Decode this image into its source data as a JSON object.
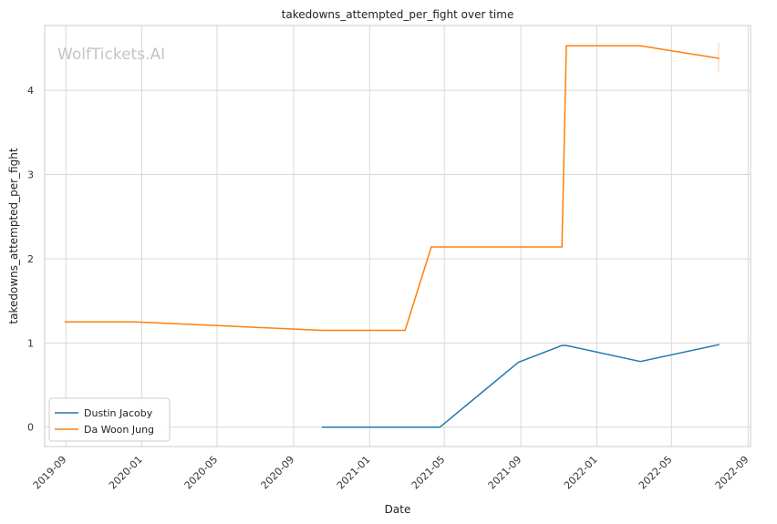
{
  "chart_data": {
    "type": "line",
    "title": "takedowns_attempted_per_fight over time",
    "xlabel": "Date",
    "ylabel": "takedowns_attempted_per_fight",
    "watermark": "WolfTickets.AI",
    "xlim": [
      "2019-07-29",
      "2022-09-05"
    ],
    "ylim": [
      -0.23,
      4.77
    ],
    "x_ticks": [
      "2019-09",
      "2020-01",
      "2020-05",
      "2020-09",
      "2021-01",
      "2021-05",
      "2021-09",
      "2022-01",
      "2022-05",
      "2022-09"
    ],
    "y_ticks": [
      0,
      1,
      2,
      3,
      4
    ],
    "grid": true,
    "legend_position": "lower-left",
    "series": [
      {
        "name": "Dustin Jacoby",
        "color": "#1f77b4",
        "points": [
          {
            "x": "2020-10-17",
            "y": 0.0
          },
          {
            "x": "2021-04-24",
            "y": 0.0
          },
          {
            "x": "2021-08-28",
            "y": 0.77
          },
          {
            "x": "2021-11-06",
            "y": 0.97
          },
          {
            "x": "2021-11-13",
            "y": 0.97
          },
          {
            "x": "2022-03-12",
            "y": 0.78
          },
          {
            "x": "2022-07-16",
            "y": 0.98
          }
        ]
      },
      {
        "name": "Da Woon Jung",
        "color": "#ff7f0e",
        "points": [
          {
            "x": "2019-08-31",
            "y": 1.25
          },
          {
            "x": "2019-12-21",
            "y": 1.25
          },
          {
            "x": "2020-10-17",
            "y": 1.15
          },
          {
            "x": "2021-02-27",
            "y": 1.15
          },
          {
            "x": "2021-04-10",
            "y": 2.14
          },
          {
            "x": "2021-11-06",
            "y": 2.14
          },
          {
            "x": "2021-11-13",
            "y": 4.53
          },
          {
            "x": "2022-03-12",
            "y": 4.53
          },
          {
            "x": "2022-07-16",
            "y": 4.38
          }
        ]
      }
    ]
  }
}
